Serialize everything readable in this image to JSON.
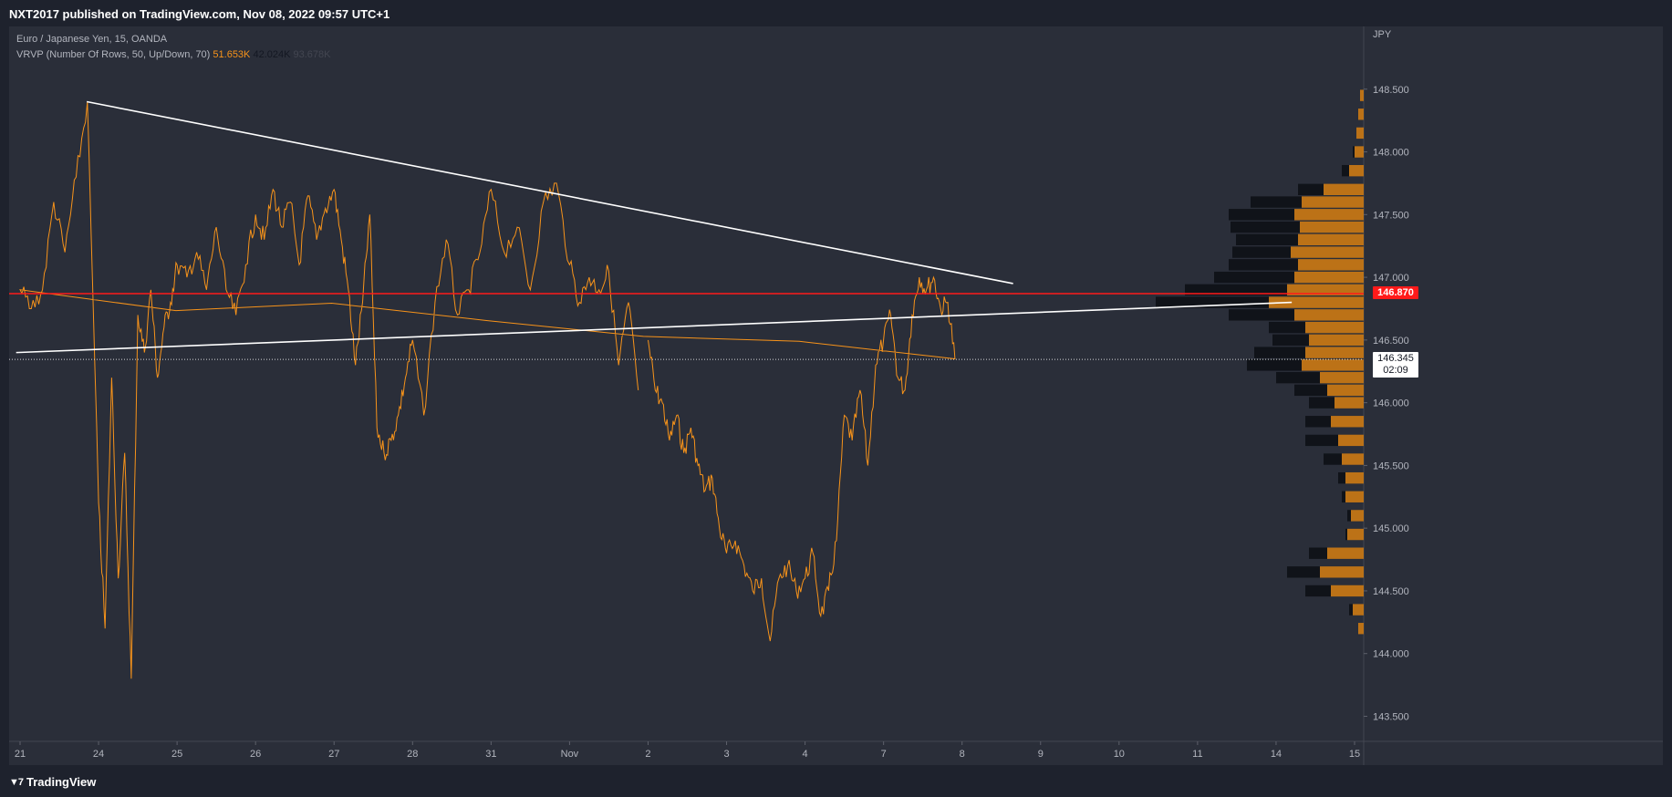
{
  "header": {
    "published_text": "NXT2017 published on TradingView.com, Nov 08, 2022 09:57 UTC+1"
  },
  "legend": {
    "symbol_line": "Euro / Japanese Yen, 15, OANDA",
    "indicator_label": "VRVP (Number Of Rows, 50, Up/Down, 70)",
    "vol_up": "51.653K",
    "vol_down": "42.024K",
    "vol_total": "93.678K"
  },
  "footer": {
    "brand": "TradingView",
    "logo_icon": "tradingview-logo-icon"
  },
  "colors": {
    "background": "#2a2e39",
    "price_line": "#f7931a",
    "trendline": "#ffffff",
    "horizontal_level": "#ff1a1a",
    "volume_up": "#cc7a14",
    "volume_down": "#0c0e14"
  },
  "chart_data": {
    "type": "line",
    "symbol": "Euro / Japanese Yen",
    "interval": "15",
    "source": "OANDA",
    "currency_label": "JPY",
    "y_ticks": [
      "143.500",
      "144.000",
      "144.500",
      "145.000",
      "145.500",
      "146.000",
      "146.500",
      "147.000",
      "147.500",
      "148.000",
      "148.500"
    ],
    "ylim": [
      143.3,
      149.0
    ],
    "x_ticks": [
      "21",
      "24",
      "25",
      "26",
      "27",
      "28",
      "31",
      "Nov",
      "2",
      "3",
      "4",
      "7",
      "8",
      "9",
      "10",
      "11",
      "14",
      "15"
    ],
    "price_series": {
      "name": "EURJPY",
      "points": [
        [
          "21",
          146.9
        ],
        [
          "21",
          146.75
        ],
        [
          "21",
          146.9
        ],
        [
          "21",
          147.6
        ],
        [
          "21",
          147.2
        ],
        [
          "21",
          147.8
        ],
        [
          "21",
          148.4
        ],
        [
          "24",
          145.2
        ],
        [
          "24",
          144.2
        ],
        [
          "24",
          146.2
        ],
        [
          "24",
          144.6
        ],
        [
          "24",
          145.6
        ],
        [
          "24",
          143.8
        ],
        [
          "24",
          146.7
        ],
        [
          "24",
          146.4
        ],
        [
          "24",
          146.9
        ],
        [
          "24",
          146.2
        ],
        [
          "24",
          146.6
        ],
        [
          "24",
          146.8
        ],
        [
          "25",
          147.1
        ],
        [
          "25",
          147.0
        ],
        [
          "25",
          147.2
        ],
        [
          "25",
          146.9
        ],
        [
          "25",
          147.4
        ],
        [
          "25",
          146.9
        ],
        [
          "25",
          146.7
        ],
        [
          "25",
          147.1
        ],
        [
          "26",
          147.5
        ],
        [
          "26",
          147.3
        ],
        [
          "26",
          147.7
        ],
        [
          "26",
          147.4
        ],
        [
          "26",
          147.6
        ],
        [
          "26",
          147.1
        ],
        [
          "26",
          147.65
        ],
        [
          "26",
          147.3
        ],
        [
          "26",
          147.55
        ],
        [
          "27",
          147.7
        ],
        [
          "27",
          147.3
        ],
        [
          "27",
          146.9
        ],
        [
          "27",
          146.3
        ],
        [
          "27",
          146.8
        ],
        [
          "27",
          147.5
        ],
        [
          "27",
          145.8
        ],
        [
          "27",
          145.6
        ],
        [
          "27",
          145.7
        ],
        [
          "27",
          145.9
        ],
        [
          "27",
          146.2
        ],
        [
          "28",
          146.5
        ],
        [
          "28",
          145.9
        ],
        [
          "28",
          146.8
        ],
        [
          "28",
          147.3
        ],
        [
          "28",
          146.7
        ],
        [
          "28",
          146.9
        ],
        [
          "28",
          147.2
        ],
        [
          "31",
          147.7
        ],
        [
          "31",
          147.2
        ],
        [
          "31",
          147.4
        ],
        [
          "31",
          146.9
        ],
        [
          "31",
          147.6
        ],
        [
          "31",
          147.75
        ],
        [
          "Nov",
          147.1
        ],
        [
          "Nov",
          146.8
        ],
        [
          "Nov",
          147.0
        ],
        [
          "Nov",
          146.9
        ],
        [
          "Nov",
          147.05
        ],
        [
          "Nov",
          146.3
        ],
        [
          "Nov",
          146.8
        ],
        [
          "Nov",
          146.1
        ],
        [
          "2",
          146.5
        ],
        [
          "2",
          146.1
        ],
        [
          "2",
          146.0
        ],
        [
          "2",
          145.7
        ],
        [
          "2",
          145.9
        ],
        [
          "2",
          145.6
        ],
        [
          "2",
          145.8
        ],
        [
          "2",
          145.5
        ],
        [
          "2",
          145.3
        ],
        [
          "2",
          145.4
        ],
        [
          "2",
          145.0
        ],
        [
          "3",
          144.8
        ],
        [
          "3",
          144.9
        ],
        [
          "3",
          144.7
        ],
        [
          "3",
          144.5
        ],
        [
          "3",
          144.6
        ],
        [
          "3",
          144.1
        ],
        [
          "3",
          144.6
        ],
        [
          "3",
          144.7
        ],
        [
          "3",
          144.5
        ],
        [
          "4",
          144.6
        ],
        [
          "4",
          144.8
        ],
        [
          "4",
          144.3
        ],
        [
          "4",
          144.5
        ],
        [
          "4",
          144.9
        ],
        [
          "4",
          145.9
        ],
        [
          "4",
          145.7
        ],
        [
          "4",
          146.1
        ],
        [
          "4",
          145.5
        ],
        [
          "4",
          146.3
        ],
        [
          "7",
          146.5
        ],
        [
          "7",
          146.7
        ],
        [
          "7",
          146.2
        ],
        [
          "7",
          146.1
        ],
        [
          "7",
          146.7
        ],
        [
          "7",
          147.0
        ],
        [
          "7",
          146.9
        ],
        [
          "7",
          147.0
        ],
        [
          "7",
          146.75
        ],
        [
          "7",
          146.8
        ],
        [
          "7",
          146.35
        ]
      ]
    },
    "trendlines": [
      {
        "kind": "descending",
        "from": [
          "21",
          148.4
        ],
        "to": [
          "8",
          146.95
        ]
      },
      {
        "kind": "ascending",
        "from": [
          "21",
          146.4
        ],
        "to": [
          "14",
          146.8
        ]
      }
    ],
    "horizontal_level": {
      "value": 146.87,
      "label": "146.870"
    },
    "last_price": {
      "value": 146.345,
      "label": "146.345",
      "countdown": "02:09"
    },
    "volume_profile": {
      "type": "Up/Down",
      "rows": [
        {
          "price": 148.45,
          "up": 0.02,
          "down": 0.0
        },
        {
          "price": 148.3,
          "up": 0.03,
          "down": 0.0
        },
        {
          "price": 148.15,
          "up": 0.04,
          "down": 0.0
        },
        {
          "price": 148.0,
          "up": 0.05,
          "down": 0.01
        },
        {
          "price": 147.85,
          "up": 0.08,
          "down": 0.04
        },
        {
          "price": 147.7,
          "up": 0.22,
          "down": 0.14
        },
        {
          "price": 147.6,
          "up": 0.34,
          "down": 0.28
        },
        {
          "price": 147.5,
          "up": 0.38,
          "down": 0.36
        },
        {
          "price": 147.4,
          "up": 0.35,
          "down": 0.38
        },
        {
          "price": 147.3,
          "up": 0.36,
          "down": 0.34
        },
        {
          "price": 147.2,
          "up": 0.4,
          "down": 0.32
        },
        {
          "price": 147.1,
          "up": 0.36,
          "down": 0.38
        },
        {
          "price": 147.0,
          "up": 0.38,
          "down": 0.44
        },
        {
          "price": 146.9,
          "up": 0.42,
          "down": 0.56
        },
        {
          "price": 146.8,
          "up": 0.52,
          "down": 0.62
        },
        {
          "price": 146.7,
          "up": 0.38,
          "down": 0.36
        },
        {
          "price": 146.6,
          "up": 0.32,
          "down": 0.2
        },
        {
          "price": 146.5,
          "up": 0.3,
          "down": 0.2
        },
        {
          "price": 146.4,
          "up": 0.32,
          "down": 0.28
        },
        {
          "price": 146.3,
          "up": 0.34,
          "down": 0.3
        },
        {
          "price": 146.2,
          "up": 0.24,
          "down": 0.24
        },
        {
          "price": 146.1,
          "up": 0.2,
          "down": 0.18
        },
        {
          "price": 146.0,
          "up": 0.16,
          "down": 0.14
        },
        {
          "price": 145.85,
          "up": 0.18,
          "down": 0.14
        },
        {
          "price": 145.7,
          "up": 0.14,
          "down": 0.18
        },
        {
          "price": 145.55,
          "up": 0.12,
          "down": 0.1
        },
        {
          "price": 145.4,
          "up": 0.1,
          "down": 0.04
        },
        {
          "price": 145.25,
          "up": 0.1,
          "down": 0.02
        },
        {
          "price": 145.1,
          "up": 0.07,
          "down": 0.02
        },
        {
          "price": 144.95,
          "up": 0.09,
          "down": 0.01
        },
        {
          "price": 144.8,
          "up": 0.2,
          "down": 0.1
        },
        {
          "price": 144.65,
          "up": 0.24,
          "down": 0.18
        },
        {
          "price": 144.5,
          "up": 0.18,
          "down": 0.14
        },
        {
          "price": 144.35,
          "up": 0.06,
          "down": 0.02
        },
        {
          "price": 144.2,
          "up": 0.03,
          "down": 0.0
        }
      ]
    }
  }
}
